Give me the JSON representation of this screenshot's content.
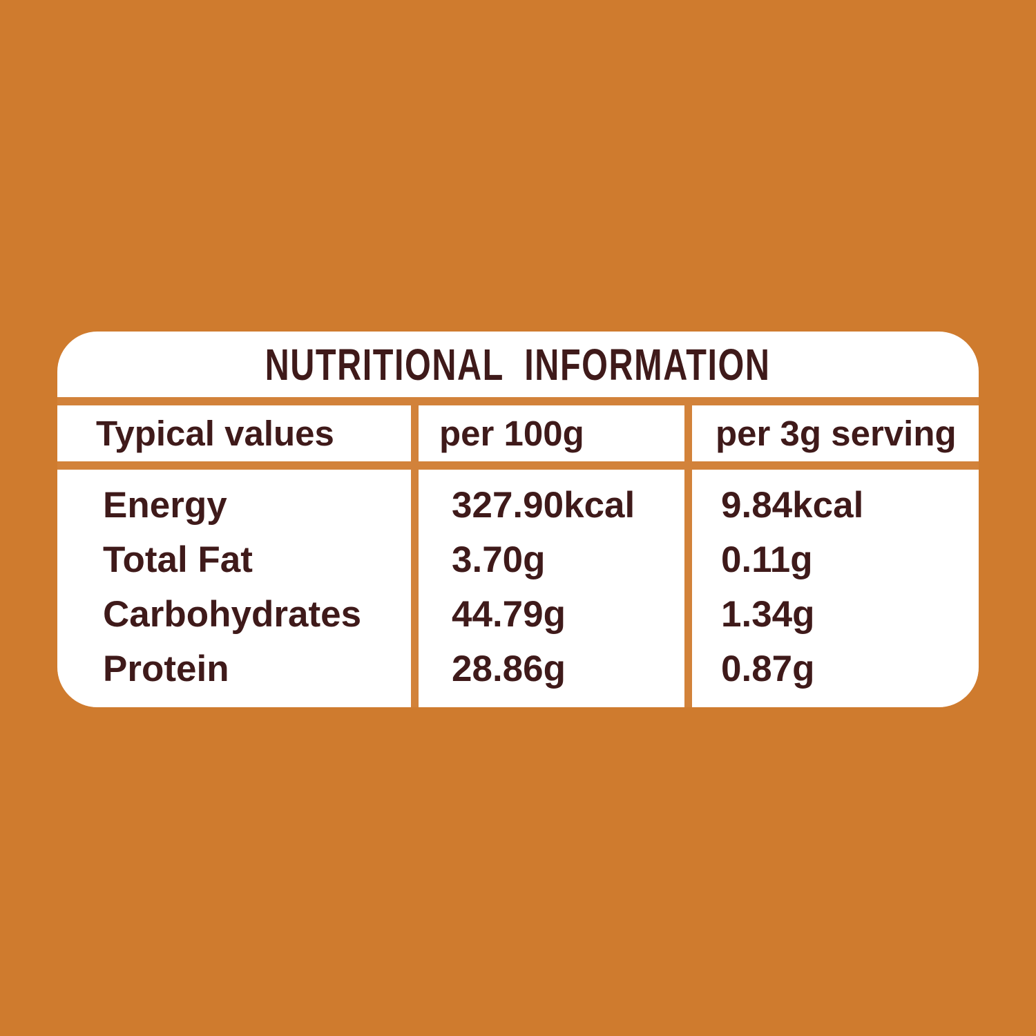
{
  "colors": {
    "background": "#CF7B2E",
    "divider": "#D2823A",
    "panel": "#FFFFFF",
    "text": "#3F1A1A"
  },
  "table": {
    "title": "NUTRITIONAL INFORMATION",
    "columns": [
      "Typical values",
      "per 100g",
      "per 3g serving"
    ],
    "rows": [
      {
        "label": "Energy",
        "per_100g": "327.90kcal",
        "per_serving": "9.84kcal"
      },
      {
        "label": "Total Fat",
        "per_100g": "3.70g",
        "per_serving": "0.11g"
      },
      {
        "label": "Carbohydrates",
        "per_100g": "44.79g",
        "per_serving": "1.34g"
      },
      {
        "label": "Protein",
        "per_100g": "28.86g",
        "per_serving": "0.87g"
      }
    ]
  },
  "chart_data": {
    "type": "table",
    "title": "NUTRITIONAL INFORMATION",
    "columns": [
      "Typical values",
      "per 100g",
      "per 3g serving"
    ],
    "rows": [
      [
        "Energy",
        "327.90kcal",
        "9.84kcal"
      ],
      [
        "Total Fat",
        "3.70g",
        "0.11g"
      ],
      [
        "Carbohydrates",
        "44.79g",
        "1.34g"
      ],
      [
        "Protein",
        "28.86g",
        "0.87g"
      ]
    ]
  }
}
